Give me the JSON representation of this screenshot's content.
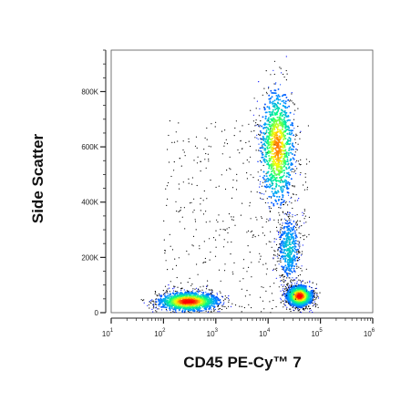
{
  "chart_data": {
    "type": "scatter",
    "subtype": "flow-cytometry-density-dot-plot",
    "title": "",
    "xlabel": "CD45 PE-Cy™ 7",
    "ylabel": "Side Scatter",
    "x_scale": "log",
    "xlim": [
      10,
      1000000
    ],
    "x_ticks": [
      {
        "value": 10,
        "base": "10",
        "exp": "1"
      },
      {
        "value": 100,
        "base": "10",
        "exp": "2"
      },
      {
        "value": 1000,
        "base": "10",
        "exp": "3"
      },
      {
        "value": 10000,
        "base": "10",
        "exp": "4"
      },
      {
        "value": 100000,
        "base": "10",
        "exp": "5"
      },
      {
        "value": 1000000,
        "base": "10",
        "exp": "6"
      }
    ],
    "y_scale": "linear",
    "ylim": [
      0,
      950000
    ],
    "y_ticks": [
      {
        "value": 0,
        "label": "0"
      },
      {
        "value": 200000,
        "label": "200K"
      },
      {
        "value": 400000,
        "label": "400K"
      },
      {
        "value": 600000,
        "label": "600K"
      },
      {
        "value": 800000,
        "label": "800K"
      }
    ],
    "colormap": [
      "#0000ff",
      "#00a0ff",
      "#00ff80",
      "#ffff00",
      "#ff0000"
    ],
    "background_color": "#000000",
    "populations": [
      {
        "x_center": 300,
        "y_center": 40000,
        "x_spread_decades": 0.3,
        "y_spread": 18000,
        "relative_density": 1.0
      },
      {
        "x_center": 15000,
        "y_center": 600000,
        "x_spread_decades": 0.17,
        "y_spread": 110000,
        "relative_density": 0.85
      },
      {
        "x_center": 40000,
        "y_center": 60000,
        "x_spread_decades": 0.13,
        "y_spread": 20000,
        "relative_density": 1.0
      },
      {
        "x_center": 25000,
        "y_center": 230000,
        "x_spread_decades": 0.12,
        "y_spread": 70000,
        "relative_density": 0.35
      }
    ]
  }
}
